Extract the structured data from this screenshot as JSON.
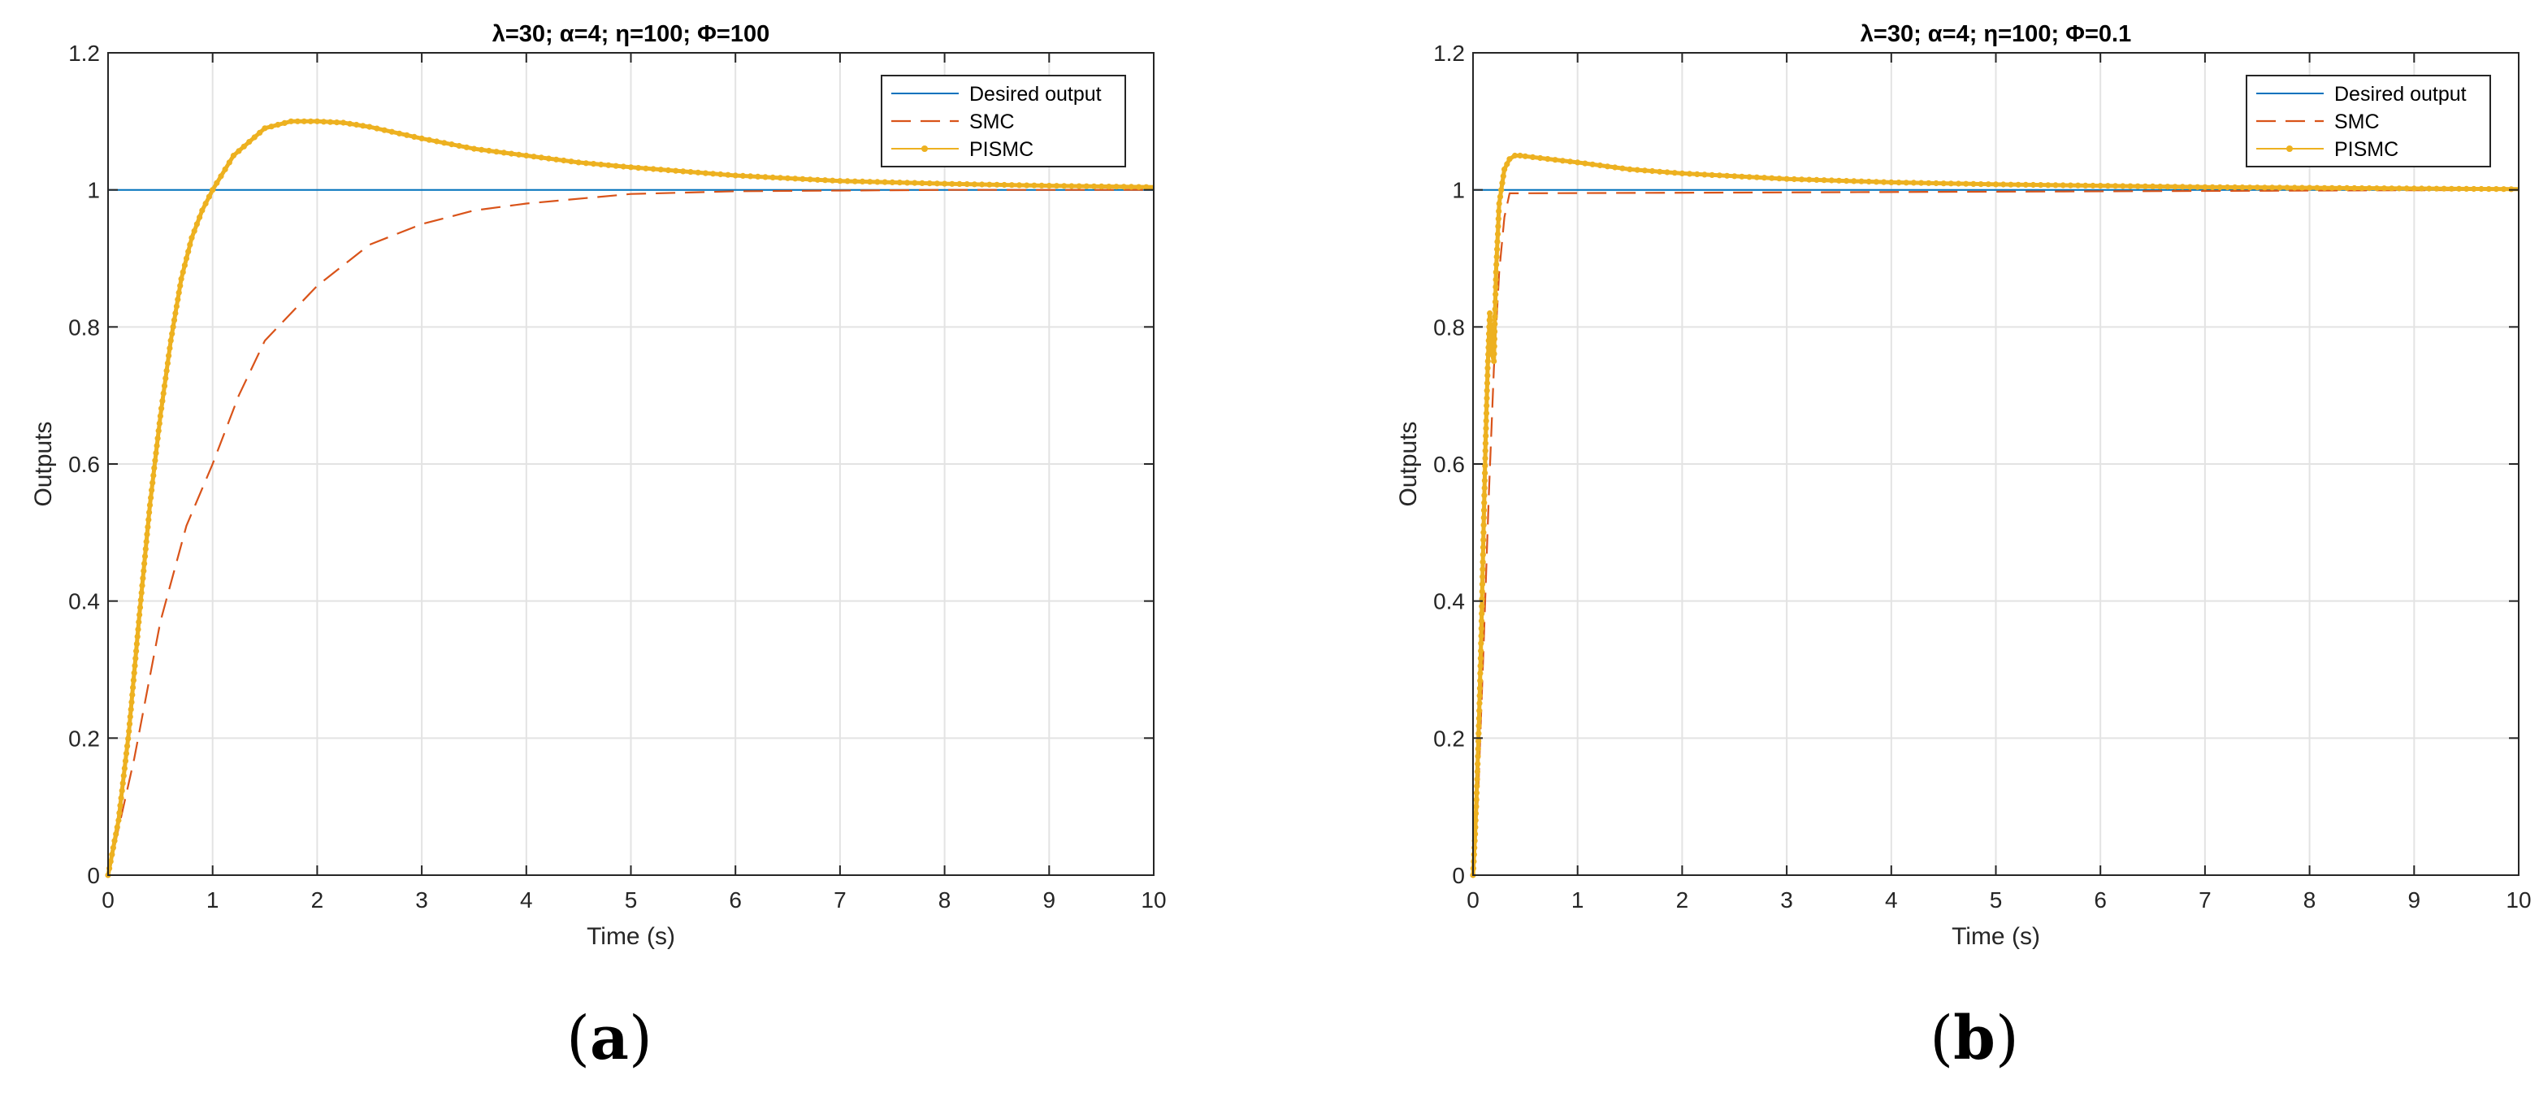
{
  "figure": {
    "panels": [
      {
        "label_open": "(",
        "label_letter": "a",
        "label_close": ")"
      },
      {
        "label_open": "(",
        "label_letter": "b",
        "label_close": ")"
      }
    ]
  },
  "chart_data": [
    {
      "type": "line",
      "title": "λ=30; α=4; η=100; Φ=100",
      "xlabel": "Time (s)",
      "ylabel": "Outputs",
      "xlim": [
        0,
        10
      ],
      "ylim": [
        0,
        1.2
      ],
      "xticks": [
        0,
        1,
        2,
        3,
        4,
        5,
        6,
        7,
        8,
        9,
        10
      ],
      "yticks": [
        0,
        0.2,
        0.4,
        0.6,
        0.8,
        1,
        1.2
      ],
      "xtick_labels": [
        "0",
        "1",
        "2",
        "3",
        "4",
        "5",
        "6",
        "7",
        "8",
        "9",
        "10"
      ],
      "ytick_labels": [
        "0",
        "0.2",
        "0.4",
        "0.6",
        "0.8",
        "1",
        "1.2"
      ],
      "grid": true,
      "legend_position": "top-right",
      "series": [
        {
          "name": "Desired output",
          "color": "#0072BD",
          "style": "solid",
          "x": [
            0,
            10
          ],
          "y": [
            1,
            1
          ]
        },
        {
          "name": "SMC",
          "color": "#D95319",
          "style": "dashed",
          "x": [
            0,
            0.25,
            0.5,
            0.75,
            1,
            1.25,
            1.5,
            2,
            2.5,
            3,
            3.5,
            4,
            5,
            6,
            7,
            8,
            9,
            10
          ],
          "y": [
            0,
            0.17,
            0.37,
            0.51,
            0.6,
            0.7,
            0.78,
            0.86,
            0.92,
            0.95,
            0.97,
            0.98,
            0.994,
            0.998,
            0.999,
            1.0,
            1.0,
            1.0
          ]
        },
        {
          "name": "PISMC",
          "color": "#EDB120",
          "style": "solid-dotted",
          "x": [
            0,
            0.1,
            0.2,
            0.3,
            0.4,
            0.5,
            0.6,
            0.7,
            0.8,
            0.9,
            1,
            1.2,
            1.5,
            1.75,
            2,
            2.25,
            2.5,
            3,
            3.5,
            4,
            4.5,
            5,
            6,
            7,
            8,
            9,
            10
          ],
          "y": [
            0,
            0.08,
            0.21,
            0.38,
            0.54,
            0.67,
            0.78,
            0.87,
            0.93,
            0.97,
            1.0,
            1.05,
            1.09,
            1.1,
            1.1,
            1.098,
            1.092,
            1.075,
            1.06,
            1.05,
            1.04,
            1.033,
            1.021,
            1.013,
            1.009,
            1.006,
            1.004
          ]
        }
      ]
    },
    {
      "type": "line",
      "title": "λ=30; α=4; η=100; Φ=0.1",
      "xlabel": "Time (s)",
      "ylabel": "Outputs",
      "xlim": [
        0,
        10
      ],
      "ylim": [
        0,
        1.2
      ],
      "xticks": [
        0,
        1,
        2,
        3,
        4,
        5,
        6,
        7,
        8,
        9,
        10
      ],
      "yticks": [
        0,
        0.2,
        0.4,
        0.6,
        0.8,
        1,
        1.2
      ],
      "xtick_labels": [
        "0",
        "1",
        "2",
        "3",
        "4",
        "5",
        "6",
        "7",
        "8",
        "9",
        "10"
      ],
      "ytick_labels": [
        "0",
        "0.2",
        "0.4",
        "0.6",
        "0.8",
        "1",
        "1.2"
      ],
      "grid": true,
      "legend_position": "top-right",
      "series": [
        {
          "name": "Desired output",
          "color": "#0072BD",
          "style": "solid",
          "x": [
            0,
            10
          ],
          "y": [
            1,
            1
          ]
        },
        {
          "name": "SMC",
          "color": "#D95319",
          "style": "dashed",
          "x": [
            0,
            0.05,
            0.1,
            0.15,
            0.2,
            0.25,
            0.3,
            0.35,
            10
          ],
          "y": [
            0,
            0.12,
            0.33,
            0.55,
            0.74,
            0.88,
            0.96,
            0.995,
            1.0
          ]
        },
        {
          "name": "PISMC",
          "color": "#EDB120",
          "style": "solid-dotted",
          "x": [
            0,
            0.02,
            0.04,
            0.06,
            0.08,
            0.1,
            0.12,
            0.14,
            0.16,
            0.18,
            0.2,
            0.22,
            0.25,
            0.3,
            0.35,
            0.4,
            0.45,
            0.5,
            1,
            1.5,
            2,
            3,
            4,
            5,
            6,
            7,
            8,
            9,
            10
          ],
          "y": [
            0,
            0.06,
            0.14,
            0.24,
            0.36,
            0.5,
            0.63,
            0.74,
            0.82,
            0.76,
            0.75,
            0.88,
            0.98,
            1.03,
            1.045,
            1.05,
            1.05,
            1.049,
            1.04,
            1.03,
            1.024,
            1.016,
            1.011,
            1.008,
            1.006,
            1.004,
            1.003,
            1.002,
            1.001
          ]
        }
      ]
    }
  ]
}
